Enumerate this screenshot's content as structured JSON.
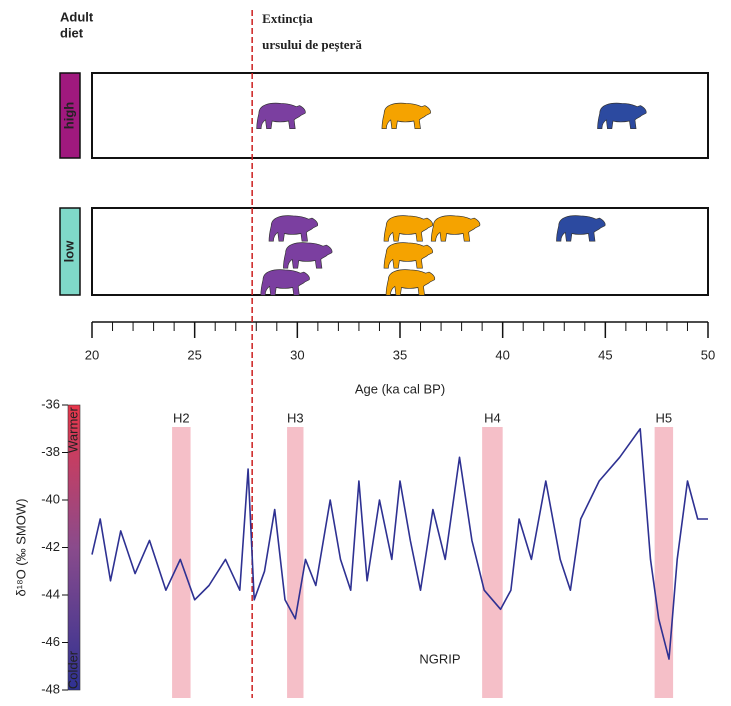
{
  "chart_data": [
    {
      "type": "strip",
      "ylabel_lines": [
        "Adult",
        "diet"
      ],
      "xlabel": "Age (ka cal BP)",
      "xlim": [
        20,
        50
      ],
      "xticks": [
        20,
        25,
        30,
        35,
        40,
        45,
        50
      ],
      "xminorticks": [
        21,
        22,
        23,
        24,
        26,
        27,
        28,
        29,
        31,
        32,
        33,
        34,
        36,
        37,
        38,
        39,
        41,
        42,
        43,
        44,
        46,
        47,
        48,
        49
      ],
      "rows": [
        {
          "label": "high",
          "color": "#a0197e",
          "points": [
            {
              "x": 29.2,
              "color": "#7b3fa0"
            },
            {
              "x": 35.3,
              "color": "#f5a300"
            },
            {
              "x": 45.8,
              "color": "#2c4aa0"
            }
          ]
        },
        {
          "label": "low",
          "color": "#7fd8c8",
          "points": [
            {
              "x": 29.8,
              "color": "#7b3fa0"
            },
            {
              "x": 30.5,
              "color": "#7b3fa0"
            },
            {
              "x": 29.4,
              "color": "#7b3fa0"
            },
            {
              "x": 35.4,
              "color": "#f5a300"
            },
            {
              "x": 35.4,
              "color": "#f5a300"
            },
            {
              "x": 37.7,
              "color": "#f5a300"
            },
            {
              "x": 35.5,
              "color": "#f5a300"
            },
            {
              "x": 43.8,
              "color": "#2c4aa0"
            }
          ]
        }
      ],
      "annotations": [
        {
          "text_lines": [
            "Extincția",
            "ursului de peșteră"
          ],
          "x": 27.8,
          "color": "#cc1f1f"
        }
      ]
    },
    {
      "type": "line",
      "ylabel": "δ¹⁸O (‰ SMOW)",
      "xlim": [
        20,
        50
      ],
      "ylim": [
        -48,
        -36
      ],
      "yticks": [
        -36,
        -38,
        -40,
        -42,
        -44,
        -46,
        -48
      ],
      "colorbar": {
        "top": "Warmer",
        "bottom": "Colder",
        "colors": [
          "#e8364a",
          "#8a4b8c",
          "#2e3192"
        ]
      },
      "bands": [
        {
          "label": "H2",
          "start": 23.9,
          "end": 24.8
        },
        {
          "label": "H3",
          "start": 29.5,
          "end": 30.3
        },
        {
          "label": "H4",
          "start": 39.0,
          "end": 40.0
        },
        {
          "label": "H5",
          "start": 47.4,
          "end": 48.3
        }
      ],
      "band_color": "#f2a9b6",
      "series": [
        {
          "name": "NGRIP",
          "color": "#2e3192",
          "x": [
            20.0,
            20.4,
            20.9,
            21.4,
            22.1,
            22.8,
            23.6,
            24.3,
            25.0,
            25.7,
            26.5,
            27.2,
            27.6,
            27.9,
            28.4,
            28.9,
            29.4,
            29.9,
            30.4,
            30.9,
            31.6,
            32.1,
            32.6,
            33.0,
            33.4,
            34.0,
            34.6,
            35.0,
            35.5,
            36.0,
            36.6,
            37.2,
            37.9,
            38.5,
            39.1,
            39.9,
            40.4,
            40.8,
            41.4,
            42.1,
            42.8,
            43.3,
            43.8,
            44.7,
            45.7,
            46.7,
            47.2,
            47.6,
            48.1,
            48.5,
            49.0,
            49.5,
            50.0
          ],
          "values": [
            -42.3,
            -40.8,
            -43.4,
            -41.3,
            -43.1,
            -41.7,
            -43.8,
            -42.5,
            -44.2,
            -43.6,
            -42.5,
            -43.8,
            -38.7,
            -44.2,
            -43.0,
            -40.4,
            -44.2,
            -45.0,
            -42.5,
            -43.6,
            -40.0,
            -42.5,
            -43.8,
            -39.2,
            -43.4,
            -40.0,
            -42.5,
            -39.2,
            -41.7,
            -43.8,
            -40.4,
            -42.5,
            -38.2,
            -41.7,
            -43.8,
            -44.6,
            -43.8,
            -40.8,
            -42.5,
            -39.2,
            -42.5,
            -43.8,
            -40.8,
            -39.2,
            -38.2,
            -37.0,
            -42.5,
            -45.0,
            -46.7,
            -42.5,
            -39.2,
            -40.8,
            -40.8
          ]
        }
      ]
    }
  ]
}
